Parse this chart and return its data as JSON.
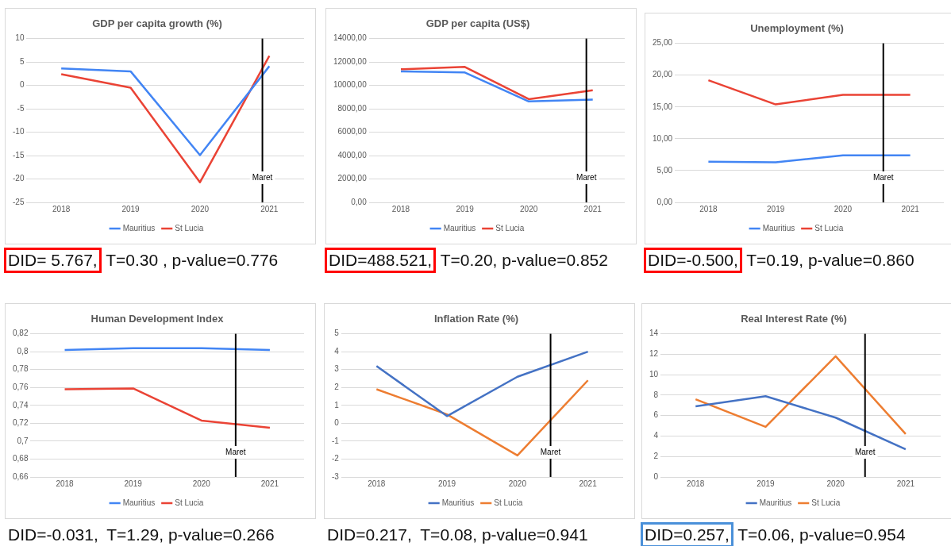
{
  "chart_data": [
    {
      "type": "line",
      "title": "GDP per capita growth (%)",
      "x": [
        2018,
        2019,
        2020,
        2021
      ],
      "xlim": [
        2017.5,
        2021.5
      ],
      "xticks": [
        2018,
        2019,
        2020,
        2021
      ],
      "ylim": [
        -25,
        10
      ],
      "yticks": [
        -25,
        -20,
        -15,
        -10,
        -5,
        0,
        5,
        10
      ],
      "grid": "y",
      "legend": "bottom",
      "marker": "none",
      "series": [
        {
          "name": "Mauritius",
          "color": "#4285f4",
          "values": [
            3.6,
            3.0,
            -14.9,
            4.1
          ]
        },
        {
          "name": "St Lucia",
          "color": "#ea4335",
          "values": [
            2.4,
            -0.5,
            -20.7,
            6.3
          ]
        }
      ],
      "ref_lines": [
        {
          "axis": "x",
          "value": 2020.9,
          "label": "Maret",
          "color": "#000000"
        }
      ],
      "annotations": [
        "DID= 5.767,",
        "T=0.30 , p-value=0.776"
      ]
    },
    {
      "type": "line",
      "title": "GDP per capita (US$)",
      "x": [
        2018,
        2019,
        2020,
        2021
      ],
      "xlim": [
        2017.5,
        2021.5
      ],
      "xticks": [
        2018,
        2019,
        2020,
        2021
      ],
      "ylim": [
        0,
        14000
      ],
      "yticks": [
        {
          "value": 0,
          "label": "0,00"
        },
        {
          "value": 2000,
          "label": "2000,00"
        },
        {
          "value": 4000,
          "label": "4000,00"
        },
        {
          "value": 6000,
          "label": "6000,00"
        },
        {
          "value": 8000,
          "label": "8000,00"
        },
        {
          "value": 10000,
          "label": "10000,00"
        },
        {
          "value": 12000,
          "label": "12000,00"
        },
        {
          "value": 14000,
          "label": "14000,00"
        }
      ],
      "grid": "y",
      "legend": "bottom",
      "marker": "none",
      "series": [
        {
          "name": "Mauritius",
          "color": "#4285f4",
          "values": [
            11200,
            11100,
            8630,
            8780
          ]
        },
        {
          "name": "St Lucia",
          "color": "#ea4335",
          "values": [
            11370,
            11580,
            8820,
            9580
          ]
        }
      ],
      "ref_lines": [
        {
          "axis": "x",
          "value": 2020.9,
          "label": "Maret",
          "color": "#000000"
        }
      ],
      "annotations": [
        "DID=488.521,",
        "T=0.20, p-value=0.852"
      ]
    },
    {
      "type": "line",
      "title": "Unemployment (%)",
      "x": [
        2018,
        2019,
        2020,
        2021
      ],
      "xlim": [
        2017.5,
        2021.5
      ],
      "xticks": [
        2018,
        2019,
        2020,
        2021
      ],
      "ylim": [
        0,
        25
      ],
      "yticks": [
        {
          "value": 0,
          "label": "0,00"
        },
        {
          "value": 5,
          "label": "5,00"
        },
        {
          "value": 10,
          "label": "10,00"
        },
        {
          "value": 15,
          "label": "15,00"
        },
        {
          "value": 20,
          "label": "20,00"
        },
        {
          "value": 25,
          "label": "25,00"
        }
      ],
      "grid": "y",
      "legend": "bottom",
      "marker": "none",
      "series": [
        {
          "name": "Mauritius",
          "color": "#4285f4",
          "values": [
            6.4,
            6.3,
            7.4,
            7.4
          ]
        },
        {
          "name": "St Lucia",
          "color": "#ea4335",
          "values": [
            19.2,
            15.4,
            16.9,
            16.9
          ]
        }
      ],
      "ref_lines": [
        {
          "axis": "x",
          "value": 2020.6,
          "label": "Maret",
          "color": "#000000"
        }
      ],
      "annotations": [
        "DID=-0.500,",
        "T=0.19, p-value=0.860"
      ]
    },
    {
      "type": "line",
      "title": "Human Development Index",
      "x": [
        2018,
        2019,
        2020,
        2021
      ],
      "xlim": [
        2017.5,
        2021.5
      ],
      "xticks": [
        2018,
        2019,
        2020,
        2021
      ],
      "ylim": [
        0.66,
        0.82
      ],
      "yticks": [
        {
          "value": 0.66,
          "label": "0,66"
        },
        {
          "value": 0.68,
          "label": "0,68"
        },
        {
          "value": 0.7,
          "label": "0,7"
        },
        {
          "value": 0.72,
          "label": "0,72"
        },
        {
          "value": 0.74,
          "label": "0,74"
        },
        {
          "value": 0.76,
          "label": "0,76"
        },
        {
          "value": 0.78,
          "label": "0,78"
        },
        {
          "value": 0.8,
          "label": "0,8"
        },
        {
          "value": 0.82,
          "label": "0,82"
        }
      ],
      "grid": "y",
      "legend": "bottom",
      "marker": "none",
      "series": [
        {
          "name": "Mauritius",
          "color": "#4285f4",
          "values": [
            0.802,
            0.804,
            0.804,
            0.802
          ]
        },
        {
          "name": "St Lucia",
          "color": "#ea4335",
          "values": [
            0.758,
            0.759,
            0.723,
            0.715
          ]
        }
      ],
      "ref_lines": [
        {
          "axis": "x",
          "value": 2020.5,
          "label": "Maret",
          "color": "#000000"
        }
      ],
      "annotations": [
        "DID=-0.031,",
        "T=1.29, p-value=0.266"
      ]
    },
    {
      "type": "line",
      "title": "Inflation Rate (%)",
      "x": [
        2018,
        2019,
        2020,
        2021
      ],
      "xlim": [
        2017.5,
        2021.5
      ],
      "xticks": [
        2018,
        2019,
        2020,
        2021
      ],
      "ylim": [
        -3,
        5
      ],
      "yticks": [
        -3,
        -2,
        -1,
        0,
        1,
        2,
        3,
        4,
        5
      ],
      "grid": "y",
      "legend": "bottom",
      "marker": "none",
      "series": [
        {
          "name": "Mauritius",
          "color": "#4472c4",
          "values": [
            3.2,
            0.4,
            2.6,
            4.0
          ]
        },
        {
          "name": "St Lucia",
          "color": "#ed7d31",
          "values": [
            1.9,
            0.5,
            -1.8,
            2.4
          ]
        }
      ],
      "ref_lines": [
        {
          "axis": "x",
          "value": 2020.47,
          "label": "Maret",
          "color": "#000000"
        }
      ],
      "annotations": [
        "DID=0.217,",
        "T=0.08, p-value=0.941"
      ]
    },
    {
      "type": "line",
      "title": "Real Interest Rate (%)",
      "x": [
        2018,
        2019,
        2020,
        2021
      ],
      "xlim": [
        2017.5,
        2021.5
      ],
      "xticks": [
        2018,
        2019,
        2020,
        2021
      ],
      "ylim": [
        0,
        14
      ],
      "yticks": [
        0,
        2,
        4,
        6,
        8,
        10,
        12,
        14
      ],
      "grid": "y",
      "legend": "bottom",
      "marker": "none",
      "series": [
        {
          "name": "Mauritius",
          "color": "#4472c4",
          "values": [
            6.9,
            7.9,
            5.8,
            2.7
          ]
        },
        {
          "name": "St Lucia",
          "color": "#ed7d31",
          "values": [
            7.6,
            4.9,
            11.8,
            4.2
          ]
        }
      ],
      "ref_lines": [
        {
          "axis": "x",
          "value": 2020.42,
          "label": "Maret",
          "color": "#000000"
        }
      ],
      "annotations": [
        "DID=0.257,",
        "T=0.06, p-value=0.954"
      ]
    }
  ]
}
